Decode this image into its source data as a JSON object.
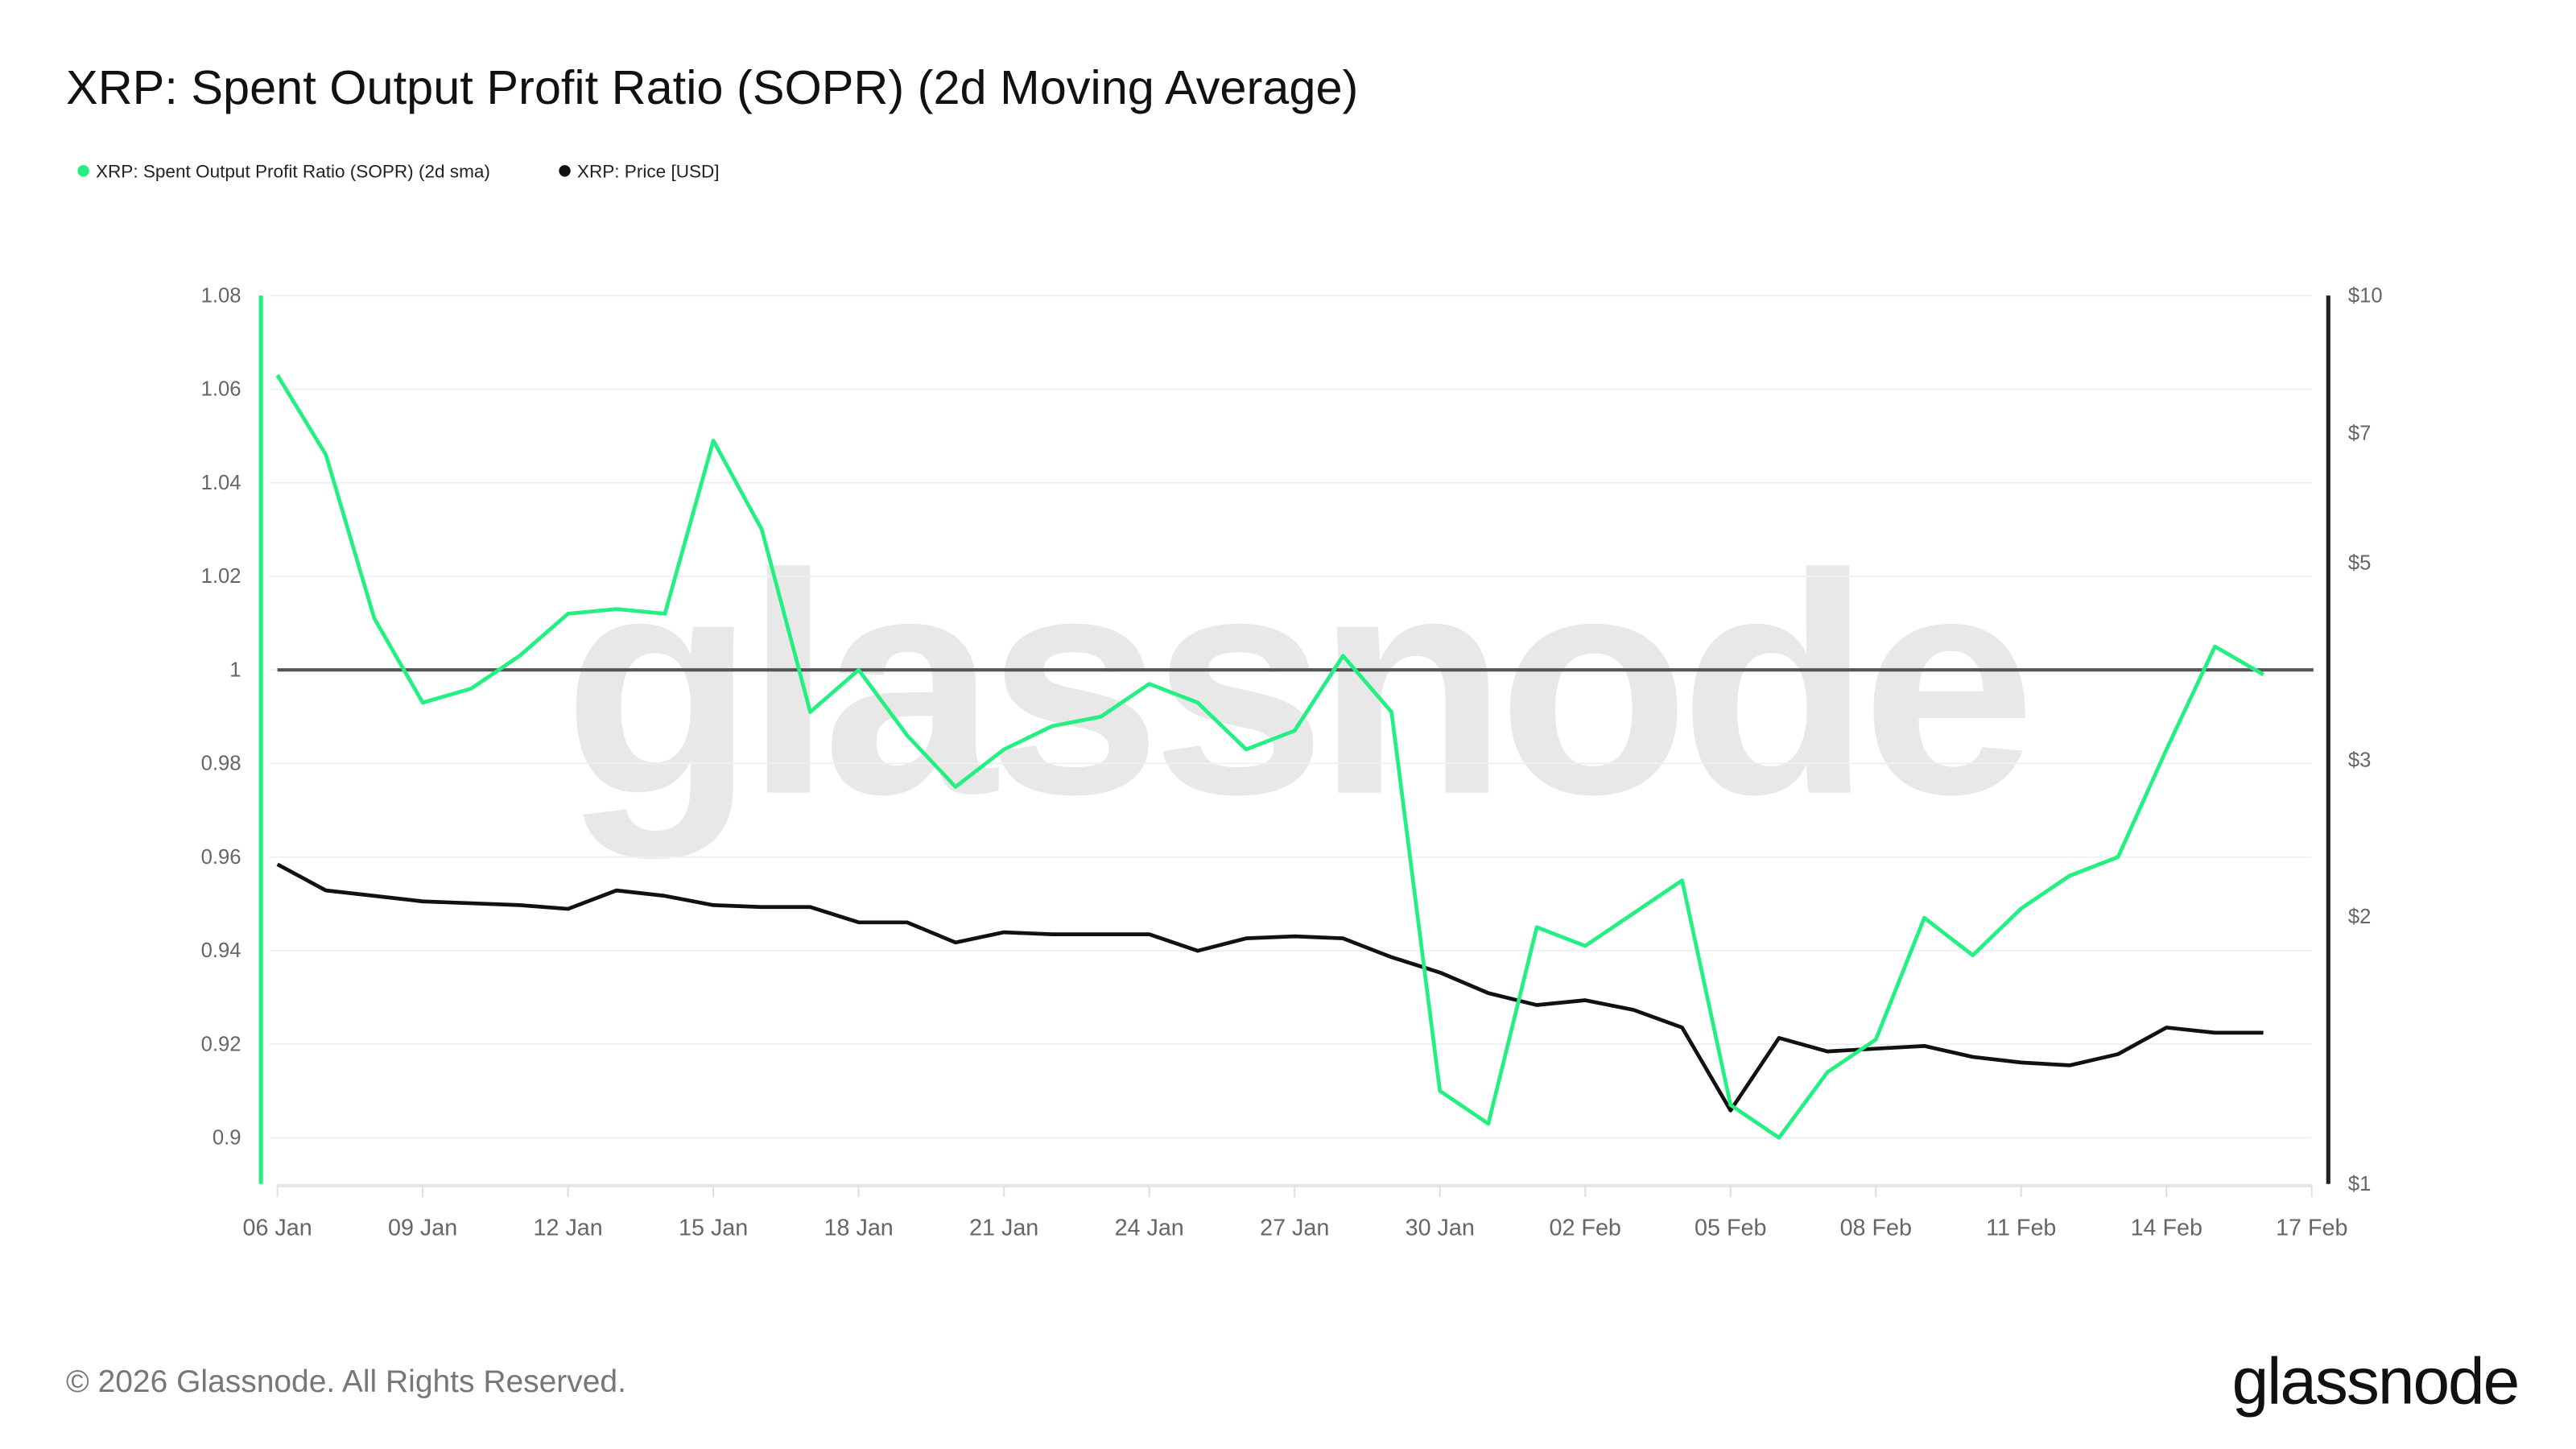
{
  "title": "XRP: Spent Output Profit Ratio (SOPR) (2d Moving Average)",
  "watermark": "glassnode",
  "footer": {
    "copyright": "© 2026 Glassnode. All Rights Reserved.",
    "logo": "glassnode"
  },
  "colors": {
    "sopr": "#22f080",
    "price": "#111111",
    "reference": "#555555",
    "grid": "#eef0f4"
  },
  "chart_data": {
    "type": "line",
    "title": "XRP: Spent Output Profit Ratio (SOPR) (2d Moving Average)",
    "legend_position": "top-left",
    "grid": true,
    "x": [
      "06 Jan",
      "07 Jan",
      "08 Jan",
      "09 Jan",
      "10 Jan",
      "11 Jan",
      "12 Jan",
      "13 Jan",
      "14 Jan",
      "15 Jan",
      "16 Jan",
      "17 Jan",
      "18 Jan",
      "19 Jan",
      "20 Jan",
      "21 Jan",
      "22 Jan",
      "23 Jan",
      "24 Jan",
      "25 Jan",
      "26 Jan",
      "27 Jan",
      "28 Jan",
      "29 Jan",
      "30 Jan",
      "31 Jan",
      "01 Feb",
      "02 Feb",
      "03 Feb",
      "04 Feb",
      "05 Feb",
      "06 Feb",
      "07 Feb",
      "08 Feb",
      "09 Feb",
      "10 Feb",
      "11 Feb",
      "12 Feb",
      "13 Feb",
      "14 Feb",
      "15 Feb",
      "16 Feb"
    ],
    "x_ticks": [
      "06 Jan",
      "09 Jan",
      "12 Jan",
      "15 Jan",
      "18 Jan",
      "21 Jan",
      "24 Jan",
      "27 Jan",
      "30 Jan",
      "02 Feb",
      "05 Feb",
      "08 Feb",
      "11 Feb",
      "14 Feb",
      "17 Feb"
    ],
    "x_range": [
      "06 Jan",
      "17 Feb"
    ],
    "y_left": {
      "ticks": [
        "1.08",
        "1.06",
        "1.04",
        "1.02",
        "1",
        "0.98",
        "0.96",
        "0.94",
        "0.92",
        "0.9"
      ],
      "range": [
        0.89,
        1.08
      ]
    },
    "y_right": {
      "ticks": [
        "$10",
        "$7",
        "$5",
        "$3",
        "$2",
        "$1"
      ],
      "tick_values": [
        10,
        7,
        5,
        3,
        2,
        1
      ],
      "range": [
        1,
        10
      ],
      "scale": "log"
    },
    "reference_line": 1,
    "series": [
      {
        "name": "XRP: Spent Output Profit Ratio (SOPR) (2d sma)",
        "axis": "left",
        "values": [
          1.063,
          1.046,
          1.011,
          0.993,
          0.996,
          1.003,
          1.012,
          1.013,
          1.012,
          1.049,
          1.03,
          0.991,
          1.0,
          0.986,
          0.975,
          0.983,
          0.988,
          0.99,
          0.997,
          0.993,
          0.983,
          0.987,
          1.003,
          0.991,
          0.91,
          0.903,
          0.945,
          0.941,
          0.948,
          0.955,
          0.907,
          0.9,
          0.914,
          0.921,
          0.947,
          0.939,
          0.949,
          0.956,
          0.96,
          0.983,
          1.005,
          0.999
        ]
      },
      {
        "name": "XRP: Price [USD]",
        "axis": "right",
        "values": [
          2.29,
          2.14,
          2.11,
          2.08,
          2.07,
          2.06,
          2.04,
          2.14,
          2.11,
          2.06,
          2.05,
          2.05,
          1.97,
          1.97,
          1.87,
          1.92,
          1.91,
          1.91,
          1.91,
          1.83,
          1.89,
          1.9,
          1.89,
          1.8,
          1.73,
          1.64,
          1.59,
          1.61,
          1.57,
          1.5,
          1.21,
          1.46,
          1.41,
          1.42,
          1.43,
          1.39,
          1.37,
          1.36,
          1.4,
          1.5,
          1.48,
          1.48
        ]
      }
    ]
  }
}
